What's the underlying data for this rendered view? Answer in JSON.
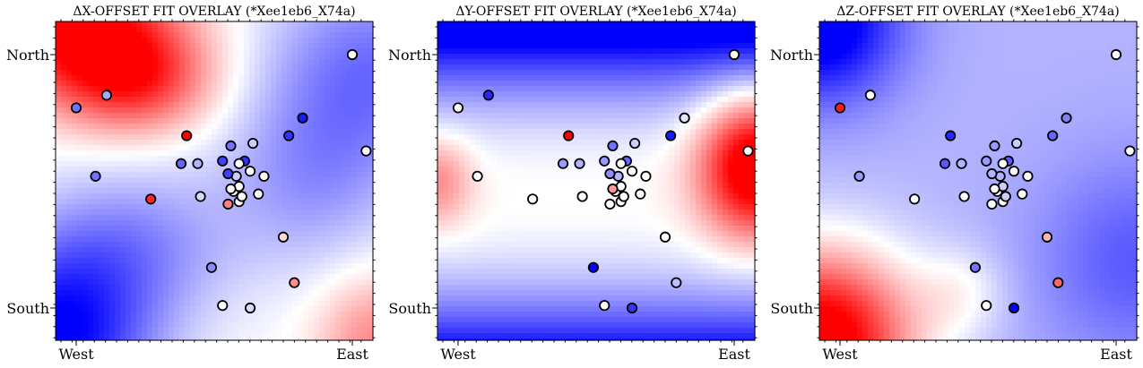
{
  "chart_data": [
    {
      "type": "scatter",
      "title": "ΔX-OFFSET FIT OVERLAY (*Xee1eb6_X74a)",
      "x_tick_labels": [
        "West",
        "East"
      ],
      "y_tick_labels": [
        "North",
        "South"
      ],
      "background": "diverging blue-white-red gradient field",
      "points": [
        {
          "x": 0.0,
          "y": 0.79,
          "c": -0.55
        },
        {
          "x": 0.11,
          "y": 0.84,
          "c": -0.35
        },
        {
          "x": 0.07,
          "y": 0.52,
          "c": -0.55
        },
        {
          "x": 0.27,
          "y": 0.43,
          "c": 0.85
        },
        {
          "x": 0.4,
          "y": 0.68,
          "c": 1.0
        },
        {
          "x": 0.38,
          "y": 0.57,
          "c": -0.6
        },
        {
          "x": 0.44,
          "y": 0.57,
          "c": -0.3
        },
        {
          "x": 0.45,
          "y": 0.44,
          "c": -0.15
        },
        {
          "x": 0.49,
          "y": 0.16,
          "c": -0.45
        },
        {
          "x": 0.53,
          "y": 0.01,
          "c": 0.0
        },
        {
          "x": 0.63,
          "y": -0.0,
          "c": -0.15
        },
        {
          "x": 0.75,
          "y": 0.28,
          "c": 0.15
        },
        {
          "x": 0.79,
          "y": 0.1,
          "c": 0.45
        },
        {
          "x": 0.77,
          "y": 0.68,
          "c": -0.8
        },
        {
          "x": 0.82,
          "y": 0.75,
          "c": -0.9
        },
        {
          "x": 0.56,
          "y": 0.64,
          "c": -0.55
        },
        {
          "x": 0.58,
          "y": 0.52,
          "c": -0.2
        },
        {
          "x": 0.57,
          "y": 0.46,
          "c": 0.0
        },
        {
          "x": 0.59,
          "y": 0.48,
          "c": 0.0
        },
        {
          "x": 0.63,
          "y": 0.54,
          "c": 0.0
        },
        {
          "x": 0.61,
          "y": 0.58,
          "c": -0.8
        },
        {
          "x": 0.53,
          "y": 0.58,
          "c": -0.75
        },
        {
          "x": 0.55,
          "y": 0.41,
          "c": 0.5
        },
        {
          "x": 0.64,
          "y": 0.65,
          "c": -0.2
        },
        {
          "x": 0.59,
          "y": 0.42,
          "c": 0.0
        },
        {
          "x": 0.55,
          "y": 0.53,
          "c": -0.75
        },
        {
          "x": 0.59,
          "y": 0.57,
          "c": 0.0
        },
        {
          "x": 0.56,
          "y": 0.47,
          "c": 0.05
        },
        {
          "x": 0.6,
          "y": 0.44,
          "c": 0.0
        },
        {
          "x": 0.66,
          "y": 0.45,
          "c": 0.0
        },
        {
          "x": 0.68,
          "y": 0.52,
          "c": 0.0
        },
        {
          "x": 1.0,
          "y": 1.0,
          "c": 0.0
        },
        {
          "x": 1.05,
          "y": 0.62,
          "c": 0.0
        }
      ]
    },
    {
      "type": "scatter",
      "title": "ΔY-OFFSET FIT OVERLAY (*Xee1eb6_X74a)",
      "x_tick_labels": [
        "West",
        "East"
      ],
      "y_tick_labels": [
        "North",
        "South"
      ],
      "background": "diverging blue-white-red gradient field",
      "points": [
        {
          "x": 0.0,
          "y": 0.79,
          "c": 0.0
        },
        {
          "x": 0.11,
          "y": 0.84,
          "c": -0.85
        },
        {
          "x": 0.07,
          "y": 0.52,
          "c": 0.0
        },
        {
          "x": 0.27,
          "y": 0.43,
          "c": 0.0
        },
        {
          "x": 0.4,
          "y": 0.68,
          "c": 1.0
        },
        {
          "x": 0.38,
          "y": 0.57,
          "c": -0.4
        },
        {
          "x": 0.44,
          "y": 0.57,
          "c": -0.3
        },
        {
          "x": 0.45,
          "y": 0.44,
          "c": 0.0
        },
        {
          "x": 0.49,
          "y": 0.16,
          "c": -1.0
        },
        {
          "x": 0.53,
          "y": 0.01,
          "c": 0.0
        },
        {
          "x": 0.63,
          "y": -0.0,
          "c": -0.8
        },
        {
          "x": 0.75,
          "y": 0.28,
          "c": 0.0
        },
        {
          "x": 0.79,
          "y": 0.1,
          "c": -0.25
        },
        {
          "x": 0.77,
          "y": 0.68,
          "c": -0.9
        },
        {
          "x": 0.82,
          "y": 0.75,
          "c": -0.1
        },
        {
          "x": 0.56,
          "y": 0.64,
          "c": -0.55
        },
        {
          "x": 0.58,
          "y": 0.52,
          "c": -0.3
        },
        {
          "x": 0.57,
          "y": 0.46,
          "c": 0.0
        },
        {
          "x": 0.59,
          "y": 0.48,
          "c": 0.0
        },
        {
          "x": 0.63,
          "y": 0.54,
          "c": 0.0
        },
        {
          "x": 0.61,
          "y": 0.58,
          "c": -0.6
        },
        {
          "x": 0.53,
          "y": 0.58,
          "c": -0.4
        },
        {
          "x": 0.55,
          "y": 0.41,
          "c": 0.0
        },
        {
          "x": 0.64,
          "y": 0.65,
          "c": -0.2
        },
        {
          "x": 0.59,
          "y": 0.42,
          "c": 0.0
        },
        {
          "x": 0.55,
          "y": 0.53,
          "c": -0.45
        },
        {
          "x": 0.59,
          "y": 0.57,
          "c": 0.0
        },
        {
          "x": 0.56,
          "y": 0.47,
          "c": 0.4
        },
        {
          "x": 0.6,
          "y": 0.44,
          "c": 0.0
        },
        {
          "x": 0.66,
          "y": 0.45,
          "c": 0.0
        },
        {
          "x": 0.68,
          "y": 0.52,
          "c": 0.0
        },
        {
          "x": 1.0,
          "y": 1.0,
          "c": 0.0
        },
        {
          "x": 1.05,
          "y": 0.62,
          "c": 0.0
        }
      ]
    },
    {
      "type": "scatter",
      "title": "ΔZ-OFFSET FIT OVERLAY (*Xee1eb6_X74a)",
      "x_tick_labels": [
        "West",
        "East"
      ],
      "y_tick_labels": [
        "North",
        "South"
      ],
      "background": "diverging blue-white-red gradient field",
      "points": [
        {
          "x": 0.0,
          "y": 0.79,
          "c": 0.9
        },
        {
          "x": 0.11,
          "y": 0.84,
          "c": 0.0
        },
        {
          "x": 0.07,
          "y": 0.52,
          "c": -0.4
        },
        {
          "x": 0.27,
          "y": 0.43,
          "c": 0.0
        },
        {
          "x": 0.4,
          "y": 0.68,
          "c": -0.85
        },
        {
          "x": 0.38,
          "y": 0.57,
          "c": -0.65
        },
        {
          "x": 0.44,
          "y": 0.57,
          "c": -0.3
        },
        {
          "x": 0.45,
          "y": 0.44,
          "c": 0.0
        },
        {
          "x": 0.49,
          "y": 0.16,
          "c": -0.55
        },
        {
          "x": 0.53,
          "y": 0.01,
          "c": 0.0
        },
        {
          "x": 0.63,
          "y": -0.0,
          "c": -1.0
        },
        {
          "x": 0.75,
          "y": 0.28,
          "c": 0.3
        },
        {
          "x": 0.79,
          "y": 0.1,
          "c": 0.6
        },
        {
          "x": 0.77,
          "y": 0.68,
          "c": -0.6
        },
        {
          "x": 0.82,
          "y": 0.75,
          "c": -0.5
        },
        {
          "x": 0.56,
          "y": 0.64,
          "c": -0.4
        },
        {
          "x": 0.58,
          "y": 0.52,
          "c": -0.3
        },
        {
          "x": 0.57,
          "y": 0.46,
          "c": 0.0
        },
        {
          "x": 0.59,
          "y": 0.48,
          "c": -0.2
        },
        {
          "x": 0.63,
          "y": 0.54,
          "c": 0.0
        },
        {
          "x": 0.61,
          "y": 0.58,
          "c": -0.65
        },
        {
          "x": 0.53,
          "y": 0.58,
          "c": -0.4
        },
        {
          "x": 0.55,
          "y": 0.41,
          "c": 0.0
        },
        {
          "x": 0.64,
          "y": 0.65,
          "c": -0.2
        },
        {
          "x": 0.59,
          "y": 0.42,
          "c": 0.0
        },
        {
          "x": 0.55,
          "y": 0.53,
          "c": -0.3
        },
        {
          "x": 0.59,
          "y": 0.57,
          "c": 0.0
        },
        {
          "x": 0.56,
          "y": 0.47,
          "c": 0.0
        },
        {
          "x": 0.6,
          "y": 0.44,
          "c": -0.2
        },
        {
          "x": 0.66,
          "y": 0.45,
          "c": 0.0
        },
        {
          "x": 0.68,
          "y": 0.52,
          "c": 0.0
        },
        {
          "x": 1.0,
          "y": 1.0,
          "c": 0.0
        },
        {
          "x": 1.05,
          "y": 0.62,
          "c": 0.0
        }
      ]
    }
  ],
  "colors": {
    "negative": "#0000ff",
    "neutral": "#ffffff",
    "positive": "#ff0000",
    "marker_edge": "#000000"
  }
}
